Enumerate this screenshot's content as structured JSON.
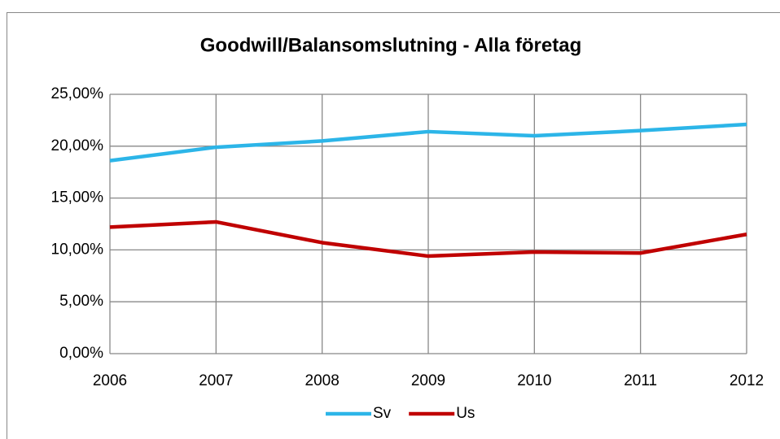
{
  "chart_data": {
    "type": "line",
    "title": "Goodwill/Balansomslutning - Alla företag",
    "x": [
      2006,
      2007,
      2008,
      2009,
      2010,
      2011,
      2012
    ],
    "xlim": [
      2006,
      2012
    ],
    "xticks": [
      2006,
      2007,
      2008,
      2009,
      2010,
      2011,
      2012
    ],
    "ylim": [
      0,
      25
    ],
    "yticks": [
      {
        "value": 0,
        "label": "0,00%"
      },
      {
        "value": 5,
        "label": "5,00%"
      },
      {
        "value": 10,
        "label": "10,00%"
      },
      {
        "value": 15,
        "label": "15,00%"
      },
      {
        "value": 20,
        "label": "20,00%"
      },
      {
        "value": 25,
        "label": "25,00%"
      }
    ],
    "grid": true,
    "legend": "bottom",
    "series": [
      {
        "name": "Sv",
        "color": "#2cb5e8",
        "values": [
          18.6,
          19.9,
          20.5,
          21.4,
          21.0,
          21.5,
          22.1
        ]
      },
      {
        "name": "Us",
        "color": "#c00000",
        "values": [
          12.2,
          12.7,
          10.7,
          9.4,
          9.8,
          9.7,
          11.5
        ]
      }
    ]
  }
}
